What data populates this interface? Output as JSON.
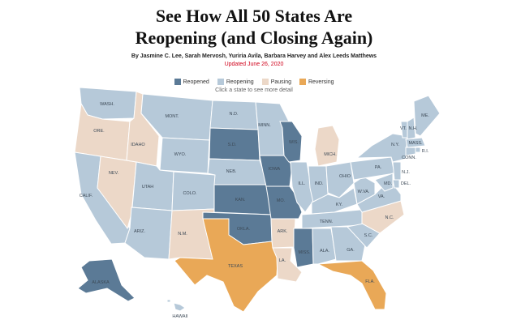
{
  "title_line1": "See How All 50 States Are",
  "title_line2": "Reopening (and Closing Again)",
  "byline": "By Jasmine C. Lee, Sarah Mervosh, Yuriria Avila, Barbara Harvey and Alex Leeds Matthews",
  "updated": "Updated June 26, 2020",
  "hint": "Click a state to see more detail",
  "legend": [
    {
      "key": "reopened",
      "label": "Reopened"
    },
    {
      "key": "reopening",
      "label": "Reopening"
    },
    {
      "key": "pausing",
      "label": "Pausing"
    },
    {
      "key": "reversing",
      "label": "Reversing"
    }
  ],
  "colors": {
    "reopened": "#5b7a96",
    "reopening": "#b6c9d9",
    "pausing": "#ecd8c8",
    "reversing": "#e9a857"
  },
  "states": {
    "wash": {
      "label": "WASH.",
      "status": "reopening"
    },
    "ore": {
      "label": "ORE.",
      "status": "pausing"
    },
    "calif": {
      "label": "CALIF.",
      "status": "reopening"
    },
    "nev": {
      "label": "NEV.",
      "status": "pausing"
    },
    "idaho": {
      "label": "IDAHO",
      "status": "pausing"
    },
    "mont": {
      "label": "MONT.",
      "status": "reopening"
    },
    "wyo": {
      "label": "WYO.",
      "status": "reopening"
    },
    "utah": {
      "label": "UTAH",
      "status": "reopening"
    },
    "ariz": {
      "label": "ARIZ.",
      "status": "reopening"
    },
    "colo": {
      "label": "COLO.",
      "status": "reopening"
    },
    "nm": {
      "label": "N.M.",
      "status": "pausing"
    },
    "nd": {
      "label": "N.D.",
      "status": "reopening"
    },
    "sd": {
      "label": "S.D.",
      "status": "reopened"
    },
    "neb": {
      "label": "NEB.",
      "status": "reopening"
    },
    "kan": {
      "label": "KAN.",
      "status": "reopened"
    },
    "okla": {
      "label": "OKLA.",
      "status": "reopened"
    },
    "texas": {
      "label": "TEXAS",
      "status": "reversing"
    },
    "minn": {
      "label": "MINN.",
      "status": "reopening"
    },
    "iowa": {
      "label": "IOWA",
      "status": "reopened"
    },
    "mo": {
      "label": "MO.",
      "status": "reopened"
    },
    "ark": {
      "label": "ARK.",
      "status": "pausing"
    },
    "la": {
      "label": "LA.",
      "status": "pausing"
    },
    "wis": {
      "label": "WIS.",
      "status": "reopened"
    },
    "ill": {
      "label": "ILL.",
      "status": "reopening"
    },
    "mich": {
      "label": "MICH.",
      "status": "pausing"
    },
    "ind": {
      "label": "IND.",
      "status": "reopening"
    },
    "ohio": {
      "label": "OHIO",
      "status": "reopening"
    },
    "ky": {
      "label": "KY.",
      "status": "reopening"
    },
    "tenn": {
      "label": "TENN.",
      "status": "reopening"
    },
    "miss": {
      "label": "MISS.",
      "status": "reopened"
    },
    "ala": {
      "label": "ALA.",
      "status": "reopening"
    },
    "ga": {
      "label": "GA.",
      "status": "reopening"
    },
    "fla": {
      "label": "FLA.",
      "status": "reversing"
    },
    "sc": {
      "label": "S.C.",
      "status": "reopening"
    },
    "nc": {
      "label": "N.C.",
      "status": "pausing"
    },
    "va": {
      "label": "VA.",
      "status": "reopening"
    },
    "wva": {
      "label": "W.VA.",
      "status": "reopening"
    },
    "pa": {
      "label": "PA.",
      "status": "reopening"
    },
    "ny": {
      "label": "N.Y.",
      "status": "reopening"
    },
    "vt": {
      "label": "VT.",
      "status": "reopening"
    },
    "nh": {
      "label": "N.H.",
      "status": "reopening"
    },
    "me": {
      "label": "ME.",
      "status": "reopening"
    },
    "mass": {
      "label": "MASS.",
      "status": "reopening"
    },
    "ri": {
      "label": "R.I.",
      "status": "reopening"
    },
    "conn": {
      "label": "CONN.",
      "status": "reopening"
    },
    "nj": {
      "label": "N.J.",
      "status": "reopening"
    },
    "del": {
      "label": "DEL.",
      "status": "reopening"
    },
    "md": {
      "label": "MD.",
      "status": "reopening"
    },
    "alaska": {
      "label": "ALASKA",
      "status": "reopened"
    },
    "hawaii": {
      "label": "HAWAII",
      "status": "reopening"
    }
  }
}
